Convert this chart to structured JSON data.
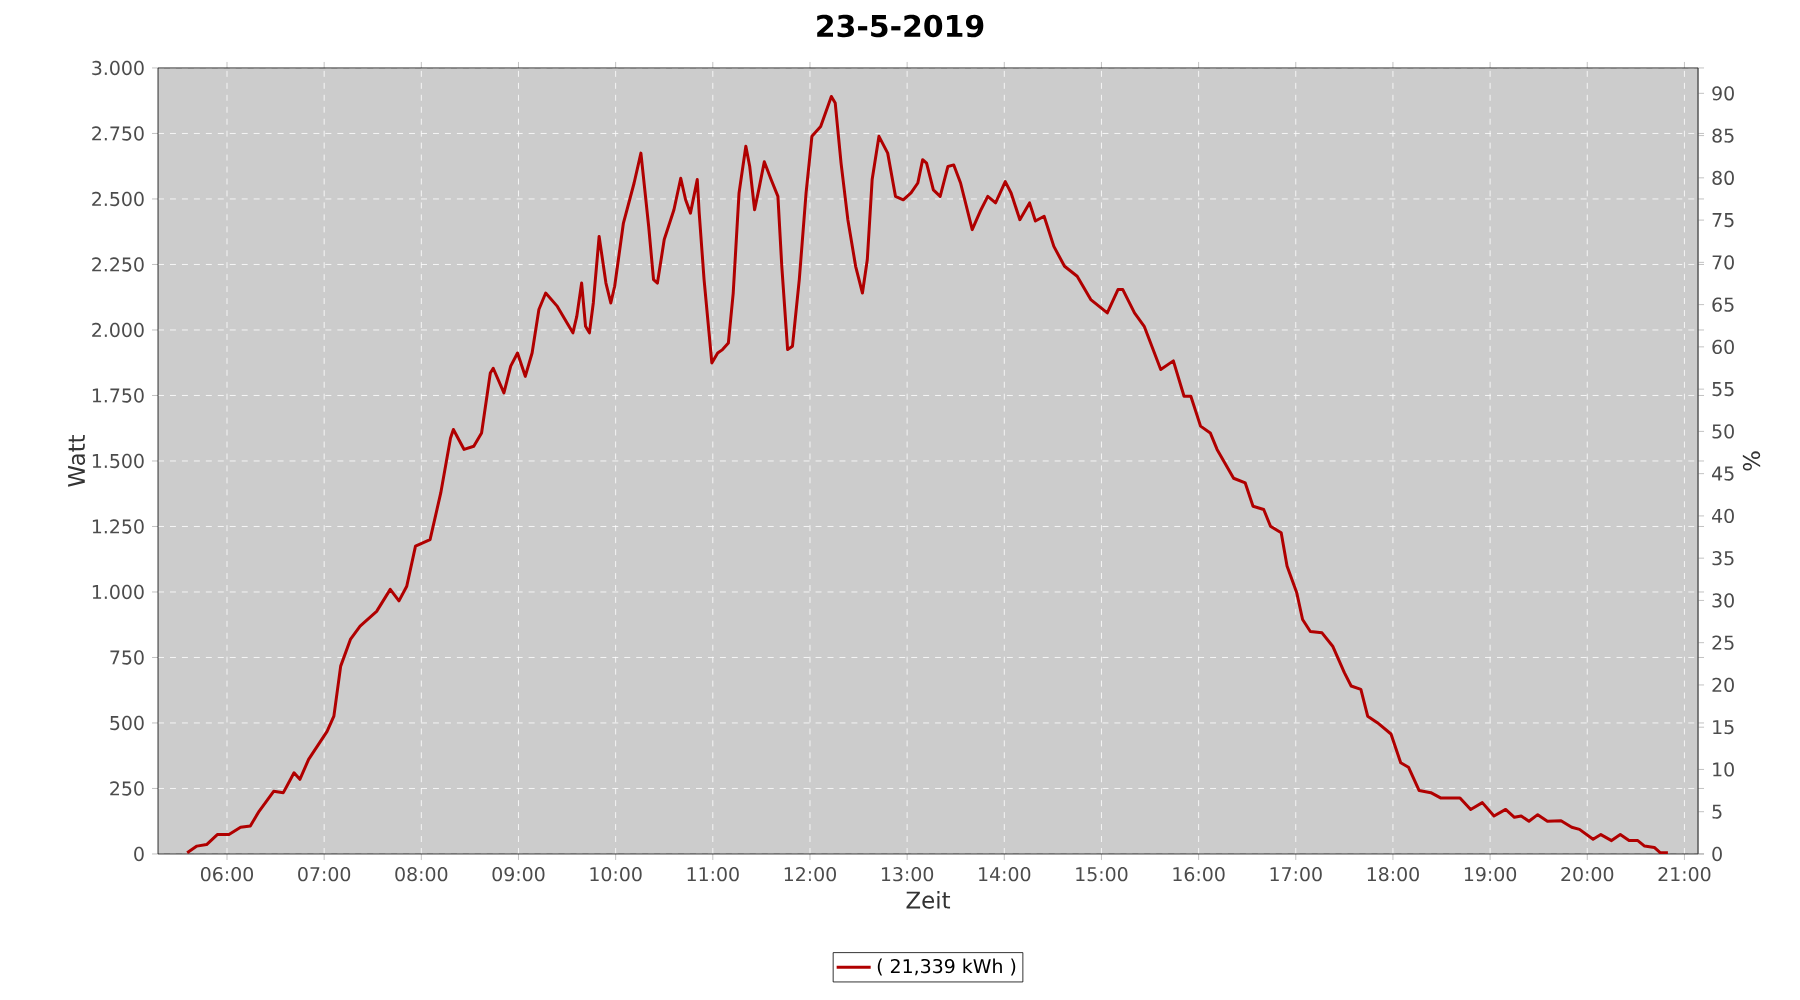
{
  "chart_data": {
    "type": "line",
    "title": "23-5-2019",
    "xlabel": "Zeit",
    "ylabel": "Watt",
    "y2label": "%",
    "xlim": [
      5.29,
      21.14
    ],
    "xticks": [
      {
        "value": 6,
        "label": "06:00"
      },
      {
        "value": 7,
        "label": "07:00"
      },
      {
        "value": 8,
        "label": "08:00"
      },
      {
        "value": 9,
        "label": "09:00"
      },
      {
        "value": 10,
        "label": "10:00"
      },
      {
        "value": 11,
        "label": "11:00"
      },
      {
        "value": 12,
        "label": "12:00"
      },
      {
        "value": 13,
        "label": "13:00"
      },
      {
        "value": 14,
        "label": "14:00"
      },
      {
        "value": 15,
        "label": "15:00"
      },
      {
        "value": 16,
        "label": "16:00"
      },
      {
        "value": 17,
        "label": "17:00"
      },
      {
        "value": 18,
        "label": "18:00"
      },
      {
        "value": 19,
        "label": "19:00"
      },
      {
        "value": 20,
        "label": "20:00"
      },
      {
        "value": 21,
        "label": "21:00"
      }
    ],
    "ylim": [
      0,
      3000
    ],
    "yticks": [
      0,
      250,
      500,
      750,
      {
        "value": 1000,
        "label": "1.000"
      },
      {
        "value": 1250,
        "label": "1.250"
      },
      {
        "value": 1500,
        "label": "1.500"
      },
      {
        "value": 1750,
        "label": "1.750"
      },
      {
        "value": 2000,
        "label": "2.000"
      },
      {
        "value": 2250,
        "label": "2.250"
      },
      {
        "value": 2500,
        "label": "2.500"
      },
      {
        "value": 2750,
        "label": "2.750"
      },
      {
        "value": 3000,
        "label": "3.000"
      }
    ],
    "y2lim": [
      0,
      93
    ],
    "y2ticks": [
      0,
      5,
      10,
      15,
      20,
      25,
      30,
      35,
      40,
      45,
      50,
      55,
      60,
      65,
      70,
      75,
      80,
      85,
      90
    ],
    "grid": true,
    "legend": "bottom",
    "marker": "none",
    "line_style": "solid",
    "series": [
      {
        "name": "( 21,339 kWh )",
        "color": "#b00000",
        "x": [
          5.59,
          5.69,
          5.79,
          5.9,
          6.02,
          6.14,
          6.24,
          6.33,
          6.48,
          6.58,
          6.69,
          6.75,
          6.84,
          7.03,
          7.1,
          7.17,
          7.27,
          7.37,
          7.54,
          7.68,
          7.77,
          7.85,
          7.94,
          8.09,
          8.2,
          8.3,
          8.33,
          8.44,
          8.54,
          8.62,
          8.71,
          8.74,
          8.85,
          8.92,
          8.99,
          9.07,
          9.14,
          9.21,
          9.28,
          9.4,
          9.5,
          9.56,
          9.6,
          9.65,
          9.69,
          9.73,
          9.77,
          9.83,
          9.9,
          9.95,
          9.99,
          10.08,
          10.19,
          10.26,
          10.34,
          10.39,
          10.43,
          10.5,
          10.6,
          10.67,
          10.72,
          10.77,
          10.84,
          10.86,
          10.91,
          10.99,
          11.05,
          11.1,
          11.16,
          11.21,
          11.27,
          11.34,
          11.38,
          11.43,
          11.48,
          11.53,
          11.6,
          11.67,
          11.71,
          11.77,
          11.82,
          11.89,
          11.96,
          12.02,
          12.11,
          12.22,
          12.26,
          12.32,
          12.39,
          12.47,
          12.54,
          12.59,
          12.64,
          12.71,
          12.8,
          12.88,
          12.96,
          13.04,
          13.11,
          13.16,
          13.2,
          13.27,
          13.34,
          13.42,
          13.48,
          13.55,
          13.67,
          13.76,
          13.83,
          13.91,
          14.01,
          14.07,
          14.16,
          14.26,
          14.32,
          14.41,
          14.51,
          14.62,
          14.75,
          14.89,
          15.06,
          15.17,
          15.22,
          15.34,
          15.44,
          15.61,
          15.74,
          15.85,
          15.92,
          16.02,
          16.12,
          16.19,
          16.36,
          16.48,
          16.56,
          16.67,
          16.74,
          16.85,
          16.91,
          17.01,
          17.07,
          17.15,
          17.27,
          17.38,
          17.5,
          17.57,
          17.67,
          17.74,
          17.84,
          17.98,
          18.08,
          18.16,
          18.27,
          18.39,
          18.49,
          18.69,
          18.8,
          18.92,
          19.04,
          19.16,
          19.25,
          19.32,
          19.4,
          19.49,
          19.59,
          19.73,
          19.84,
          19.92,
          20.06,
          20.14,
          20.25,
          20.34,
          20.43,
          20.52,
          20.59,
          20.69,
          20.75,
          20.83
        ],
        "values": [
          5,
          30,
          36,
          74,
          74,
          102,
          107,
          163,
          239,
          234,
          310,
          285,
          361,
          468,
          526,
          717,
          819,
          870,
          926,
          1010,
          966,
          1022,
          1175,
          1200,
          1378,
          1587,
          1620,
          1544,
          1556,
          1607,
          1836,
          1854,
          1760,
          1862,
          1912,
          1823,
          1912,
          2078,
          2141,
          2090,
          2027,
          1989,
          2052,
          2179,
          2014,
          1989,
          2103,
          2357,
          2179,
          2103,
          2167,
          2408,
          2561,
          2675,
          2395,
          2192,
          2179,
          2345,
          2459,
          2579,
          2497,
          2446,
          2574,
          2446,
          2192,
          1874,
          1912,
          1925,
          1950,
          2141,
          2523,
          2701,
          2624,
          2459,
          2548,
          2642,
          2574,
          2510,
          2243,
          1925,
          1938,
          2192,
          2523,
          2739,
          2777,
          2891,
          2866,
          2637,
          2421,
          2243,
          2141,
          2268,
          2574,
          2739,
          2675,
          2510,
          2497,
          2523,
          2561,
          2650,
          2637,
          2535,
          2510,
          2624,
          2630,
          2561,
          2383,
          2459,
          2510,
          2485,
          2566,
          2523,
          2421,
          2485,
          2416,
          2434,
          2319,
          2243,
          2205,
          2116,
          2065,
          2154,
          2154,
          2065,
          2014,
          1849,
          1882,
          1747,
          1747,
          1633,
          1607,
          1544,
          1434,
          1416,
          1327,
          1315,
          1251,
          1226,
          1099,
          997,
          895,
          849,
          844,
          793,
          692,
          641,
          628,
          526,
          501,
          458,
          348,
          331,
          242,
          234,
          214,
          214,
          170,
          196,
          145,
          170,
          140,
          145,
          125,
          150,
          125,
          127,
          102,
          94,
          56,
          74,
          51,
          74,
          51,
          51,
          30,
          25,
          5,
          5
        ]
      }
    ]
  }
}
